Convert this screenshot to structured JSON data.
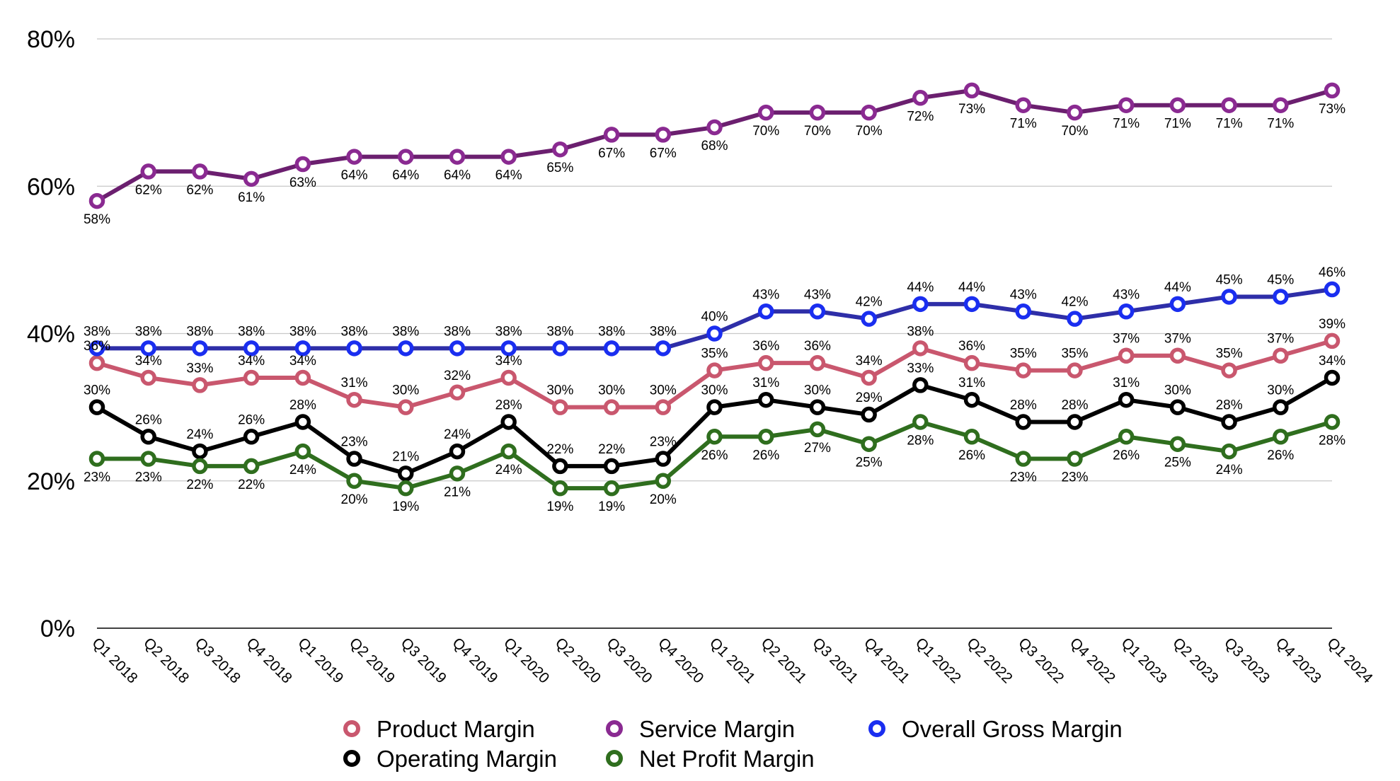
{
  "chart_data": {
    "type": "line",
    "title": "",
    "xlabel": "",
    "ylabel": "",
    "ylim": [
      0,
      80
    ],
    "yticks": [
      0,
      20,
      40,
      60,
      80
    ],
    "ytick_labels": [
      "0%",
      "20%",
      "40%",
      "60%",
      "80%"
    ],
    "grid": true,
    "legend_position": "bottom-center",
    "value_suffix": "%",
    "categories": [
      "Q1 2018",
      "Q2 2018",
      "Q3 2018",
      "Q4 2018",
      "Q1 2019",
      "Q2 2019",
      "Q3 2019",
      "Q4 2019",
      "Q1 2020",
      "Q2 2020",
      "Q3 2020",
      "Q4 2020",
      "Q1 2021",
      "Q2 2021",
      "Q3 2021",
      "Q4 2021",
      "Q1 2022",
      "Q2 2022",
      "Q3 2022",
      "Q4 2022",
      "Q1 2023",
      "Q2 2023",
      "Q3 2023",
      "Q4 2023",
      "Q1 2024"
    ],
    "series": [
      {
        "name": "Product Margin",
        "line_color": "#c9576e",
        "marker_color": "#c9576e",
        "label_position": "above",
        "values": [
          36,
          34,
          33,
          34,
          34,
          31,
          30,
          32,
          34,
          30,
          30,
          30,
          35,
          36,
          36,
          34,
          38,
          36,
          35,
          35,
          37,
          37,
          35,
          37,
          39
        ]
      },
      {
        "name": "Service Margin",
        "line_color": "#6b1f6f",
        "marker_color": "#8a2a91",
        "label_position": "below",
        "values": [
          58,
          62,
          62,
          61,
          63,
          64,
          64,
          64,
          64,
          65,
          67,
          67,
          68,
          70,
          70,
          70,
          72,
          73,
          71,
          70,
          71,
          71,
          71,
          71,
          73
        ]
      },
      {
        "name": "Overall Gross Margin",
        "line_color": "#2e2ea8",
        "marker_color": "#1a2ef0",
        "label_position": "above",
        "values": [
          38,
          38,
          38,
          38,
          38,
          38,
          38,
          38,
          38,
          38,
          38,
          38,
          40,
          43,
          43,
          42,
          44,
          44,
          43,
          42,
          43,
          44,
          45,
          45,
          46
        ]
      },
      {
        "name": "Operating Margin",
        "line_color": "#000000",
        "marker_color": "#000000",
        "label_position": "above",
        "values": [
          30,
          26,
          24,
          26,
          28,
          23,
          21,
          24,
          28,
          22,
          22,
          23,
          30,
          31,
          30,
          29,
          33,
          31,
          28,
          28,
          31,
          30,
          28,
          30,
          34
        ]
      },
      {
        "name": "Net Profit Margin",
        "line_color": "#2f6e1e",
        "marker_color": "#2f6e1e",
        "label_position": "below",
        "values": [
          23,
          23,
          22,
          22,
          24,
          20,
          19,
          21,
          24,
          19,
          19,
          20,
          26,
          26,
          27,
          25,
          28,
          26,
          23,
          23,
          26,
          25,
          24,
          26,
          28
        ]
      }
    ]
  },
  "legend": {
    "items": [
      {
        "label": "Product Margin",
        "color": "#c9576e"
      },
      {
        "label": "Service Margin",
        "color": "#8a2a91"
      },
      {
        "label": "Overall Gross Margin",
        "color": "#1a2ef0"
      },
      {
        "label": "Operating Margin",
        "color": "#000000"
      },
      {
        "label": "Net Profit Margin",
        "color": "#2f6e1e"
      }
    ]
  }
}
